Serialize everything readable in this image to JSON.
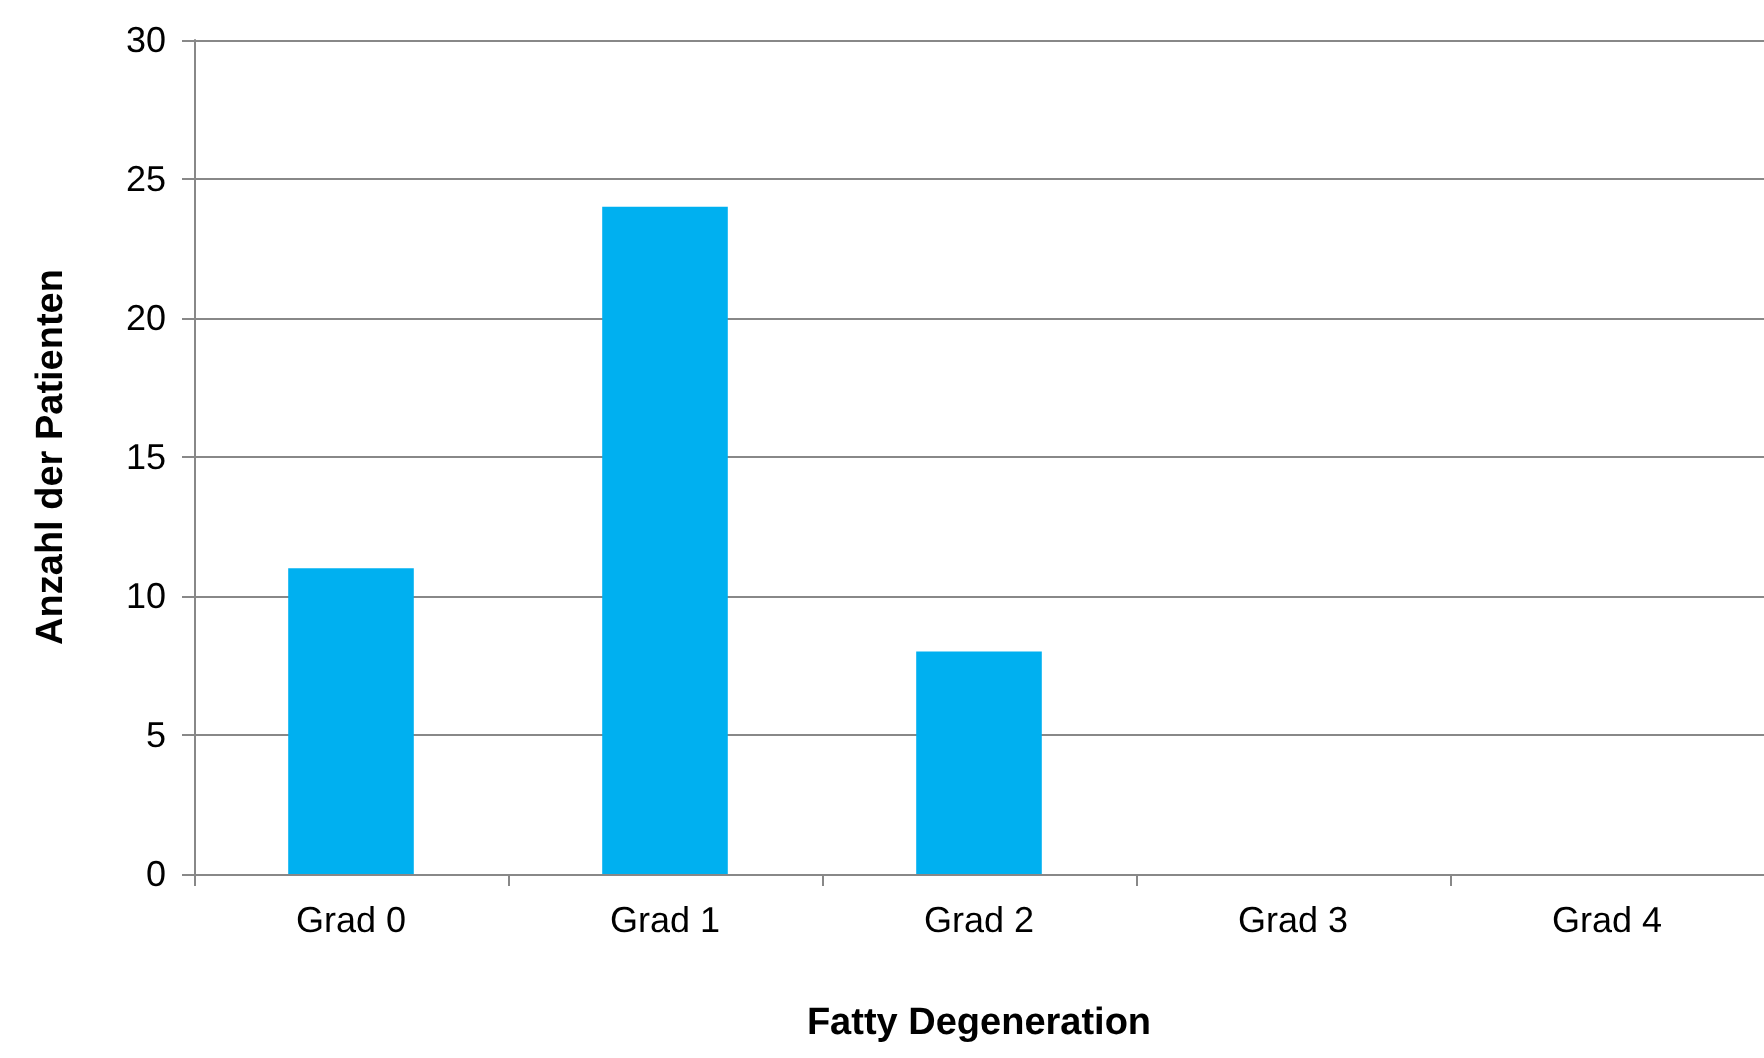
{
  "chart_data": {
    "type": "bar",
    "xlabel": "Fatty Degeneration",
    "ylabel": "Anzahl der Patienten",
    "categories": [
      "Grad 0",
      "Grad 1",
      "Grad 2",
      "Grad 3",
      "Grad 4"
    ],
    "values": [
      11,
      24,
      8,
      0,
      0
    ],
    "color": "#00b0f0",
    "ylim": [
      0,
      30
    ],
    "yticks": [
      0,
      5,
      10,
      15,
      20,
      25,
      30
    ],
    "grid": "y"
  }
}
